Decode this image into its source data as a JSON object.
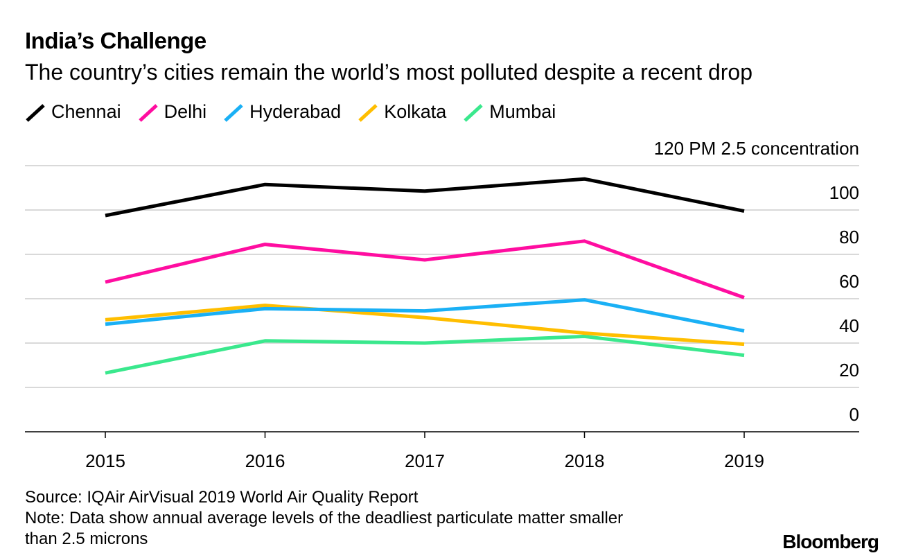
{
  "header": {
    "title": "India’s Challenge",
    "subtitle": "The country’s cities remain the world’s most polluted despite a recent drop"
  },
  "chart_data": {
    "type": "line",
    "title": "India’s Challenge",
    "subtitle": "The country’s cities remain the world’s most polluted despite a recent drop",
    "x": [
      "2015",
      "2016",
      "2017",
      "2018",
      "2019"
    ],
    "ylabel": "PM 2.5 concentration",
    "ylim": [
      0,
      120
    ],
    "yticks": [
      0,
      20,
      40,
      60,
      80,
      100,
      120
    ],
    "grid": true,
    "legend_position": "top-left",
    "series": [
      {
        "name": "Chennai",
        "color": "#000000",
        "values": [
          97.5,
          111.5,
          108.5,
          114,
          99.5
        ]
      },
      {
        "name": "Delhi",
        "color": "#ff0da0",
        "values": [
          67.5,
          84.5,
          77.5,
          86,
          60.5
        ]
      },
      {
        "name": "Hyderabad",
        "color": "#1ab0f5",
        "values": [
          48.5,
          55.5,
          54.5,
          59.5,
          45.5
        ]
      },
      {
        "name": "Kolkata",
        "color": "#ffbe00",
        "values": [
          50.5,
          57,
          51.5,
          44.5,
          39.5
        ]
      },
      {
        "name": "Mumbai",
        "color": "#3ae88d",
        "values": [
          26.5,
          41,
          40,
          43,
          34.5
        ]
      }
    ]
  },
  "footer": {
    "source": "Source: IQAir AirVisual 2019 World Air Quality Report",
    "note_line1": "Note: Data show annual average levels of the deadliest particulate matter smaller",
    "note_line2": "than 2.5 microns",
    "brand": "Bloomberg"
  }
}
